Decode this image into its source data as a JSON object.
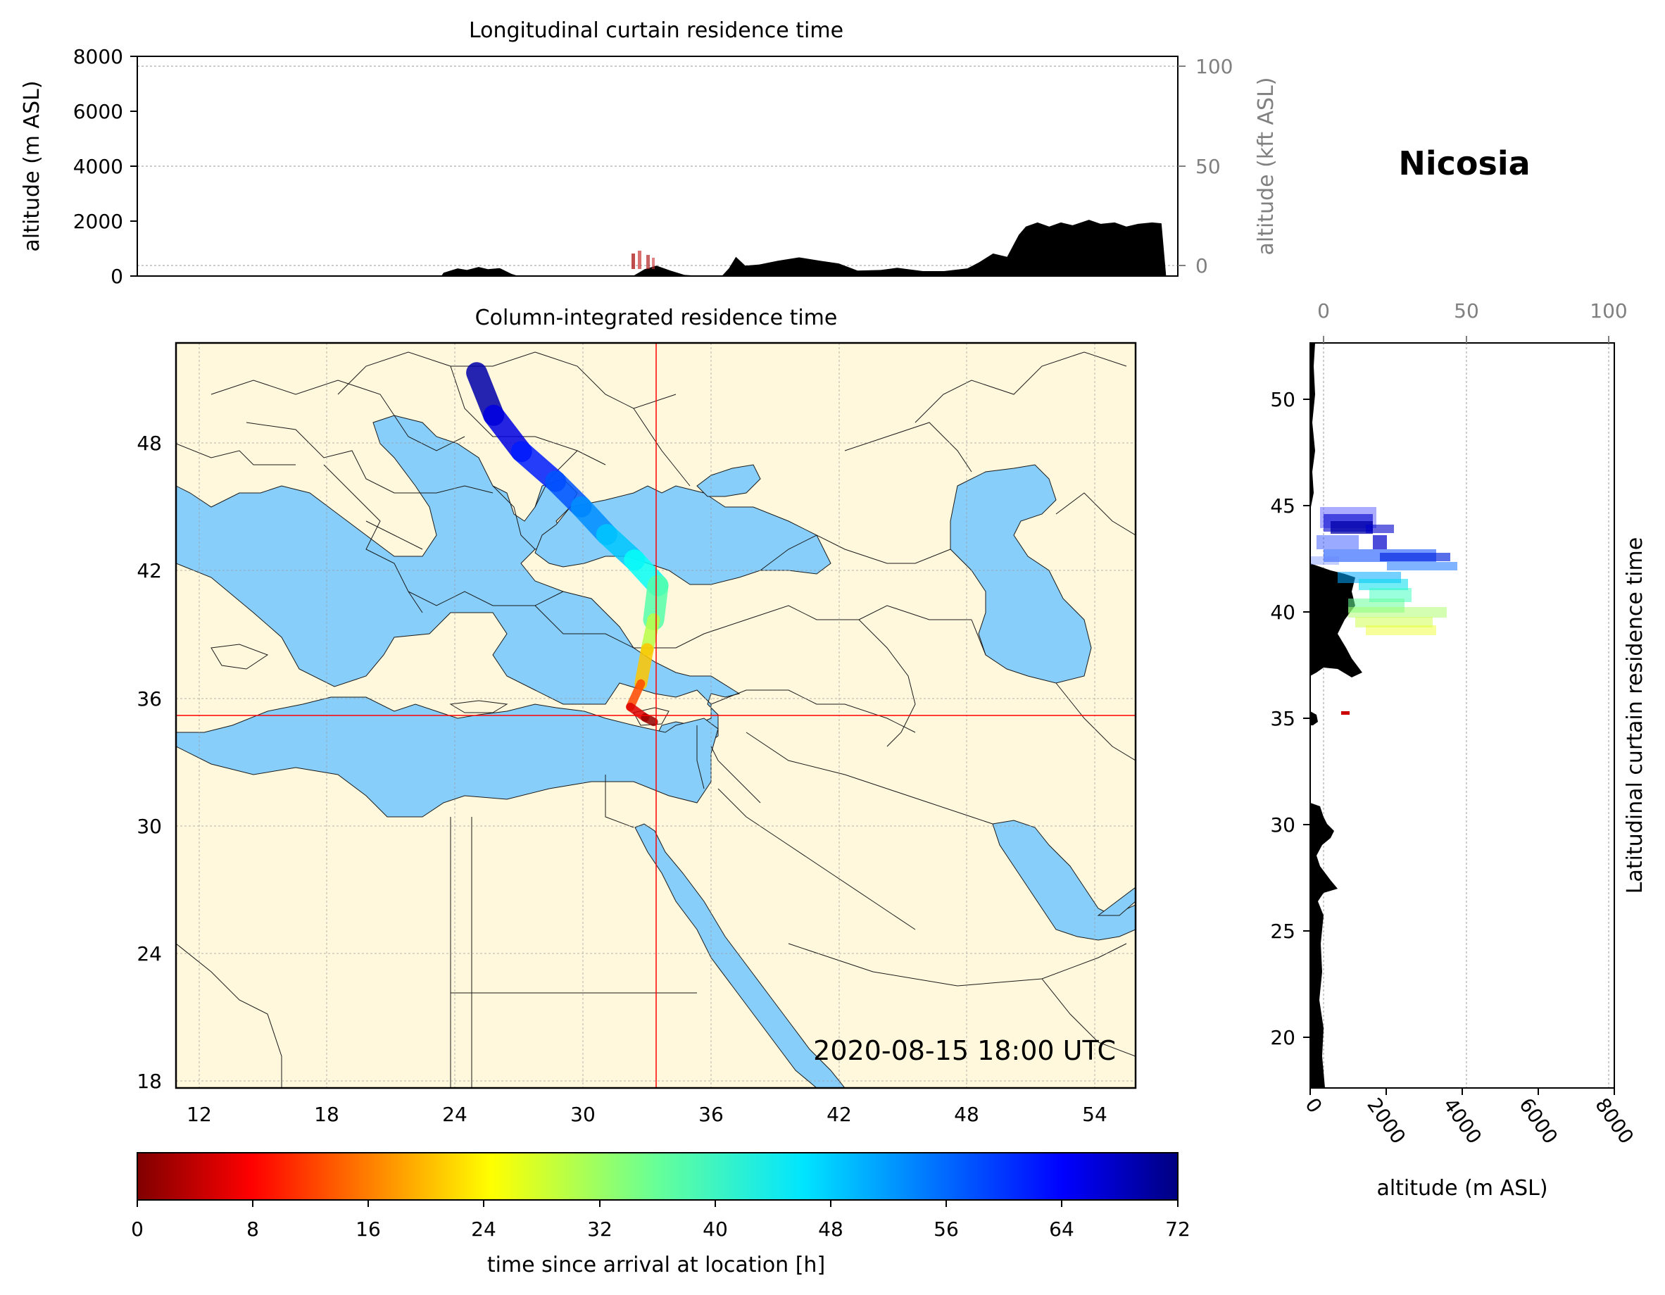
{
  "location": {
    "name": "Nicosia",
    "lat": 35.17,
    "lon": 33.36
  },
  "timestamp": "2020-08-15 18:00 UTC",
  "top_panel": {
    "title": "Longitudinal curtain residence time",
    "ylabel_left": "altitude (m ASL)",
    "ylabel_right": "altitude (kft ASL)",
    "yticks_left": [
      "0",
      "2000",
      "4000",
      "6000",
      "8000"
    ],
    "yticks_right": [
      "0",
      "50",
      "100"
    ],
    "ylim_m": [
      0,
      8000
    ],
    "xlim_deg": [
      11,
      55.5
    ],
    "terrain": [
      [
        11,
        0
      ],
      [
        24,
        0
      ],
      [
        24.1,
        120
      ],
      [
        24.7,
        280
      ],
      [
        25.1,
        220
      ],
      [
        25.6,
        330
      ],
      [
        26,
        250
      ],
      [
        26.5,
        290
      ],
      [
        27,
        80
      ],
      [
        27.3,
        0
      ],
      [
        32.2,
        0
      ],
      [
        32.7,
        250
      ],
      [
        33.2,
        380
      ],
      [
        33.8,
        200
      ],
      [
        34.4,
        40
      ],
      [
        35.2,
        0
      ],
      [
        36,
        0
      ],
      [
        36.3,
        280
      ],
      [
        36.6,
        700
      ],
      [
        37,
        380
      ],
      [
        37.6,
        420
      ],
      [
        38.4,
        560
      ],
      [
        39.3,
        680
      ],
      [
        40.2,
        560
      ],
      [
        41,
        460
      ],
      [
        41.8,
        200
      ],
      [
        42.8,
        220
      ],
      [
        43.5,
        300
      ],
      [
        44.6,
        180
      ],
      [
        45.5,
        180
      ],
      [
        46.5,
        280
      ],
      [
        47,
        500
      ],
      [
        47.6,
        820
      ],
      [
        48.2,
        700
      ],
      [
        48.7,
        1500
      ],
      [
        49,
        1800
      ],
      [
        49.5,
        1950
      ],
      [
        50,
        1800
      ],
      [
        50.5,
        1950
      ],
      [
        51,
        1850
      ],
      [
        51.7,
        2050
      ],
      [
        52.2,
        1900
      ],
      [
        52.8,
        1950
      ],
      [
        53.3,
        1800
      ],
      [
        53.8,
        1900
      ],
      [
        54.4,
        1950
      ],
      [
        54.8,
        1920
      ],
      [
        55,
        0
      ]
    ]
  },
  "map_panel": {
    "title": "Column-integrated residence time",
    "xlim_lon": [
      11,
      56
    ],
    "ylim_lat": [
      18,
      53
    ],
    "xticks": [
      "12",
      "18",
      "24",
      "30",
      "36",
      "42",
      "48",
      "54"
    ],
    "yticks": [
      "18",
      "24",
      "30",
      "36",
      "42",
      "48"
    ],
    "land_color": "#FFF8DC",
    "water_color": "#87CEFA",
    "crosshair_color": "#FF0000",
    "plume": [
      {
        "lon": 25.1,
        "lat": 51.6,
        "t": 71
      },
      {
        "lon": 25.9,
        "lat": 49.6,
        "t": 67
      },
      {
        "lon": 27.2,
        "lat": 47.9,
        "t": 63
      },
      {
        "lon": 28.8,
        "lat": 46.5,
        "t": 59
      },
      {
        "lon": 30.0,
        "lat": 45.3,
        "t": 55
      },
      {
        "lon": 31.2,
        "lat": 44.0,
        "t": 51
      },
      {
        "lon": 32.5,
        "lat": 42.8,
        "t": 47
      },
      {
        "lon": 33.6,
        "lat": 41.6,
        "t": 42
      },
      {
        "lon": 33.4,
        "lat": 40.0,
        "t": 36
      },
      {
        "lon": 33.1,
        "lat": 38.6,
        "t": 28
      },
      {
        "lon": 32.8,
        "lat": 37.0,
        "t": 18
      },
      {
        "lon": 32.3,
        "lat": 35.9,
        "t": 10
      },
      {
        "lon": 33.0,
        "lat": 35.4,
        "t": 3
      },
      {
        "lon": 33.4,
        "lat": 35.2,
        "t": 0
      }
    ]
  },
  "right_panel": {
    "ylabel": "Latitudinal curtain residence time",
    "xlabel": "altitude (m ASL)",
    "xticks_bottom": [
      "0",
      "2000",
      "4000",
      "6000",
      "8000"
    ],
    "xticks_top": [
      "0",
      "50",
      "100"
    ],
    "yticks": [
      "20",
      "25",
      "30",
      "35",
      "40",
      "45",
      "50"
    ]
  },
  "colorbar": {
    "label": "time since arrival at location [h]",
    "ticks": [
      "0",
      "8",
      "16",
      "24",
      "32",
      "40",
      "48",
      "56",
      "64",
      "72"
    ],
    "range": [
      0,
      72
    ],
    "colormap": "jet_r",
    "stops": [
      "#800000",
      "#FF0000",
      "#FF8000",
      "#FFFF00",
      "#80FF80",
      "#00FFFF",
      "#0080FF",
      "#0000FF",
      "#000080"
    ]
  }
}
